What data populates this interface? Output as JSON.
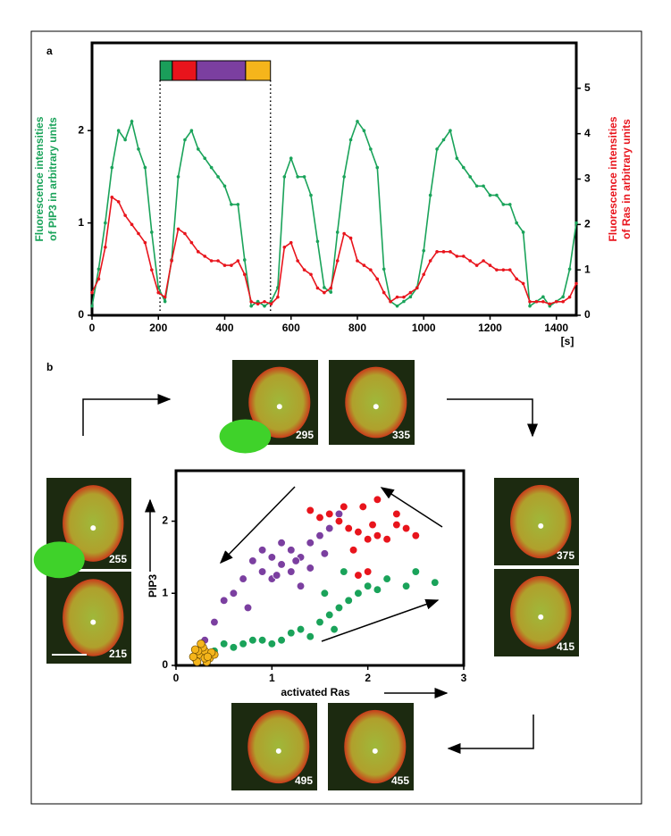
{
  "panel_labels": [
    "a",
    "b"
  ],
  "chart_data": [
    {
      "type": "line",
      "xlabel": "[s]",
      "ylabel_lines": [
        "Fluorescence intensities",
        "of PIP3 in arbitrary units"
      ],
      "y2label_lines": [
        "Fluorescence intensities",
        "of Ras in arbitrary units"
      ],
      "x": [
        0,
        20,
        40,
        60,
        80,
        100,
        120,
        140,
        160,
        180,
        200,
        220,
        240,
        260,
        280,
        300,
        320,
        340,
        360,
        380,
        400,
        420,
        440,
        460,
        480,
        500,
        520,
        540,
        560,
        580,
        600,
        620,
        640,
        660,
        680,
        700,
        720,
        740,
        760,
        780,
        800,
        820,
        840,
        860,
        880,
        900,
        920,
        940,
        960,
        980,
        1000,
        1020,
        1040,
        1060,
        1080,
        1100,
        1120,
        1140,
        1160,
        1180,
        1200,
        1220,
        1240,
        1260,
        1280,
        1300,
        1320,
        1340,
        1360,
        1380,
        1400,
        1420,
        1440,
        1460
      ],
      "xlim": [
        0,
        1460
      ],
      "xticks": [
        0,
        200,
        400,
        600,
        800,
        1000,
        1200,
        1400
      ],
      "ylim": [
        0,
        2.95
      ],
      "yticks": [
        0,
        1,
        2
      ],
      "y2lim": [
        0,
        6
      ],
      "y2ticks": [
        0,
        1,
        2,
        3,
        4,
        5
      ],
      "series": [
        {
          "color": "#1aa35a",
          "axis": "y",
          "values": [
            0.1,
            0.5,
            1.0,
            1.6,
            2.0,
            1.9,
            2.1,
            1.8,
            1.6,
            0.9,
            0.3,
            0.15,
            0.6,
            1.5,
            1.9,
            2.0,
            1.8,
            1.7,
            1.6,
            1.5,
            1.4,
            1.2,
            1.2,
            0.6,
            0.1,
            0.15,
            0.1,
            0.15,
            0.3,
            1.5,
            1.7,
            1.5,
            1.5,
            1.3,
            0.8,
            0.3,
            0.25,
            0.9,
            1.5,
            1.9,
            2.1,
            2.0,
            1.8,
            1.6,
            0.5,
            0.15,
            0.1,
            0.15,
            0.2,
            0.3,
            0.7,
            1.3,
            1.8,
            1.9,
            2.0,
            1.7,
            1.6,
            1.5,
            1.4,
            1.4,
            1.3,
            1.3,
            1.2,
            1.2,
            1.0,
            0.9,
            0.1,
            0.15,
            0.2,
            0.1,
            0.15,
            0.2,
            0.5,
            1.0
          ]
        },
        {
          "color": "#e8141c",
          "axis": "y2",
          "values": [
            0.5,
            0.8,
            1.5,
            2.6,
            2.5,
            2.2,
            2.0,
            1.8,
            1.6,
            1.0,
            0.5,
            0.4,
            1.2,
            1.9,
            1.8,
            1.6,
            1.4,
            1.3,
            1.2,
            1.2,
            1.1,
            1.1,
            1.2,
            0.9,
            0.3,
            0.25,
            0.3,
            0.25,
            0.4,
            1.5,
            1.6,
            1.2,
            1.0,
            0.9,
            0.6,
            0.5,
            0.6,
            1.2,
            1.8,
            1.7,
            1.2,
            1.1,
            1.0,
            0.8,
            0.5,
            0.3,
            0.4,
            0.4,
            0.5,
            0.6,
            0.9,
            1.2,
            1.4,
            1.4,
            1.4,
            1.3,
            1.3,
            1.2,
            1.1,
            1.2,
            1.1,
            1.0,
            1.0,
            1.0,
            0.8,
            0.7,
            0.3,
            0.3,
            0.3,
            0.25,
            0.3,
            0.3,
            0.4,
            0.7
          ]
        }
      ],
      "phase_bar": [
        {
          "color": "#1a9e5a",
          "start": 205,
          "end": 242
        },
        {
          "color": "#e8141c",
          "start": 242,
          "end": 315
        },
        {
          "color": "#7b3fa0",
          "start": 315,
          "end": 463
        },
        {
          "color": "#f5b51b",
          "start": 463,
          "end": 538
        }
      ],
      "marker_lines": [
        205,
        538
      ]
    },
    {
      "type": "scatter",
      "xlabel": "activated Ras",
      "ylabel": "PIP3",
      "xlim": [
        0,
        3
      ],
      "xticks": [
        0,
        1,
        2,
        3
      ],
      "ylim": [
        0,
        2.7
      ],
      "yticks": [
        0,
        1,
        2
      ],
      "series": [
        {
          "color": "#7b3fa0",
          "x": [
            1.0,
            1.1,
            1.2,
            0.9,
            1.3,
            1.4,
            0.8,
            1.0,
            1.2,
            1.5,
            1.6,
            0.6,
            0.5,
            0.4,
            0.3,
            0.7,
            1.3,
            1.1,
            1.7,
            0.9,
            1.4,
            1.25,
            0.75,
            1.05,
            1.55
          ],
          "values": [
            1.5,
            1.4,
            1.6,
            1.3,
            1.5,
            1.7,
            1.45,
            1.2,
            1.3,
            1.8,
            1.9,
            1.0,
            0.9,
            0.6,
            0.35,
            1.2,
            1.1,
            1.7,
            2.1,
            1.6,
            1.35,
            1.45,
            0.8,
            1.25,
            1.55
          ]
        },
        {
          "color": "#e8141c",
          "x": [
            1.6,
            1.7,
            1.8,
            1.9,
            2.0,
            2.1,
            1.95,
            2.1,
            2.3,
            2.4,
            2.5,
            2.3,
            1.85,
            2.0,
            1.9,
            1.5,
            1.4,
            2.2,
            1.75,
            2.05
          ],
          "values": [
            2.1,
            2.0,
            1.9,
            1.85,
            1.75,
            1.8,
            2.2,
            2.3,
            1.95,
            1.9,
            1.8,
            2.1,
            1.6,
            1.3,
            1.25,
            2.05,
            2.15,
            1.75,
            2.2,
            1.95
          ]
        },
        {
          "color": "#1aa35a",
          "x": [
            0.4,
            0.5,
            0.6,
            0.7,
            0.8,
            0.9,
            1.0,
            1.1,
            1.2,
            1.3,
            1.4,
            1.5,
            1.6,
            1.7,
            1.8,
            1.9,
            2.0,
            2.1,
            2.2,
            2.4,
            2.5,
            2.7,
            1.55,
            1.75,
            1.65
          ],
          "values": [
            0.2,
            0.3,
            0.25,
            0.3,
            0.35,
            0.35,
            0.3,
            0.35,
            0.45,
            0.5,
            0.4,
            0.6,
            0.7,
            0.8,
            0.9,
            1.0,
            1.1,
            1.05,
            1.2,
            1.1,
            1.3,
            1.15,
            1.0,
            1.3,
            0.5
          ]
        },
        {
          "color": "#f5b51b",
          "x": [
            0.2,
            0.25,
            0.3,
            0.22,
            0.35,
            0.28,
            0.18,
            0.32,
            0.4,
            0.26,
            0.3,
            0.23,
            0.37,
            0.2,
            0.33
          ],
          "values": [
            0.1,
            0.15,
            0.2,
            0.05,
            0.1,
            0.25,
            0.12,
            0.05,
            0.15,
            0.3,
            0.1,
            0.2,
            0.18,
            0.22,
            0.12
          ]
        }
      ]
    }
  ],
  "images": [
    {
      "label": "295"
    },
    {
      "label": "335"
    },
    {
      "label": "375"
    },
    {
      "label": "415"
    },
    {
      "label": "455"
    },
    {
      "label": "495"
    },
    {
      "label": "215"
    },
    {
      "label": "255"
    }
  ]
}
